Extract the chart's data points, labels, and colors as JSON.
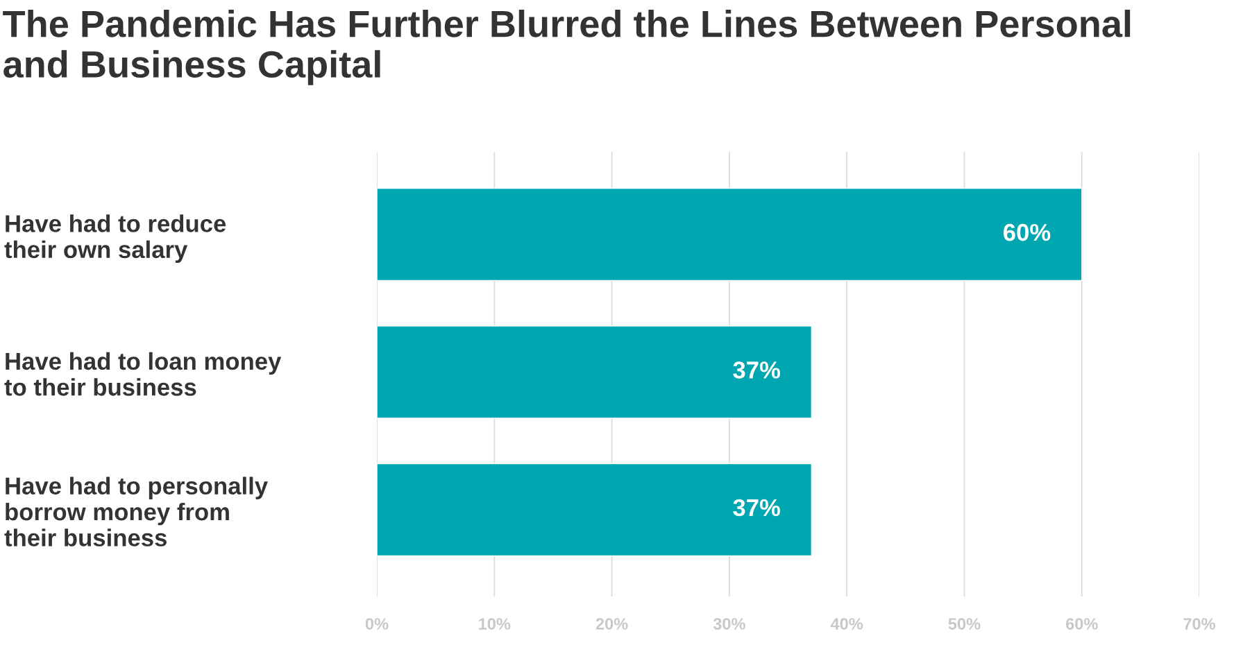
{
  "chart_data": {
    "type": "bar",
    "orientation": "horizontal",
    "title": "The Pandemic Has Further Blurred the Lines Between Personal\nand Business Capital",
    "categories": [
      "Have had to reduce\ntheir own salary",
      "Have had to loan money\nto their business",
      "Have had to personally\nborrow money from\ntheir business"
    ],
    "values": [
      60,
      37,
      37
    ],
    "color": "#00a7b0",
    "value_labels": [
      "60%",
      "37%",
      "37%"
    ],
    "xlim": [
      0,
      70
    ],
    "xticks": [
      {
        "value": 0,
        "label": "0%"
      },
      {
        "value": 10,
        "label": "10%"
      },
      {
        "value": 20,
        "label": "20%"
      },
      {
        "value": 30,
        "label": "30%"
      },
      {
        "value": 40,
        "label": "40%"
      },
      {
        "value": 50,
        "label": "50%"
      },
      {
        "value": 60,
        "label": "60%"
      },
      {
        "value": 70,
        "label": "70%"
      }
    ],
    "grid": "x"
  }
}
